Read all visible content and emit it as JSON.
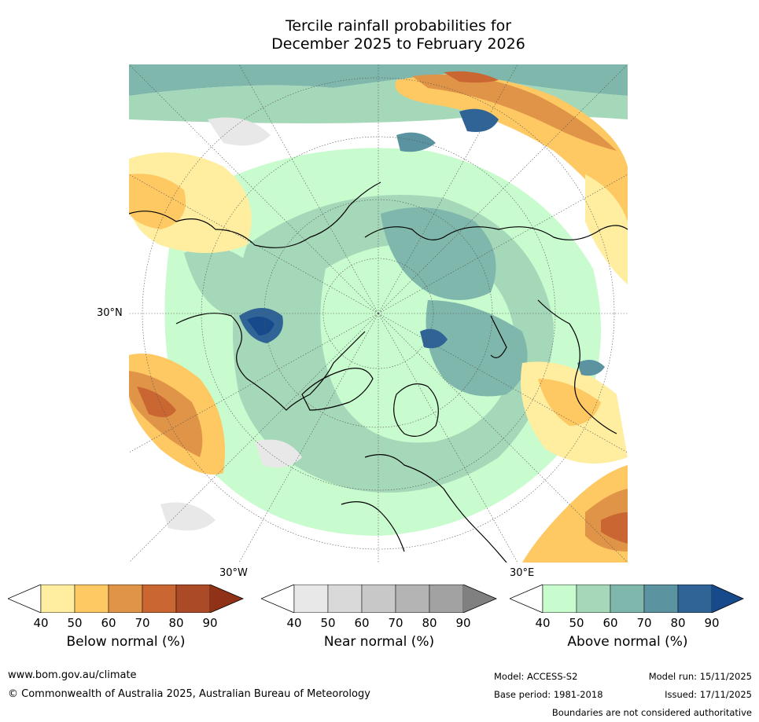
{
  "title": {
    "line1": "Tercile rainfall probabilities for",
    "line2": "December 2025 to February 2026"
  },
  "map": {
    "label_30N": "30°N",
    "label_30W": "30°W",
    "label_30E": "30°E"
  },
  "colorbars": [
    {
      "title": "Below normal (%)",
      "ticks": [
        "40",
        "50",
        "60",
        "70",
        "80",
        "90"
      ],
      "colors": [
        "#ffeda0",
        "#fec863",
        "#e09448",
        "#c96632",
        "#aa4a26"
      ],
      "over": "#8f3218"
    },
    {
      "title": "Near normal (%)",
      "ticks": [
        "40",
        "50",
        "60",
        "70",
        "80",
        "90"
      ],
      "colors": [
        "#e8e8e8",
        "#d9d9d9",
        "#c8c8c8",
        "#b4b4b4",
        "#a2a2a2"
      ],
      "over": "#808080"
    },
    {
      "title": "Above normal (%)",
      "ticks": [
        "40",
        "50",
        "60",
        "70",
        "80",
        "90"
      ],
      "colors": [
        "#c8fbcd",
        "#a5d8b9",
        "#7fb7ac",
        "#5b93a0",
        "#306496"
      ],
      "over": "#174a8a"
    }
  ],
  "footer": {
    "website": "www.bom.gov.au/climate",
    "copyright": "© Commonwealth of Australia 2025, Australian Bureau of Meteorology",
    "model": "Model: ACCESS-S2",
    "base_period": "Base period: 1981-2018",
    "model_run": "Model run: 15/11/2025",
    "issued": "Issued: 17/11/2025",
    "disclaimer": "Boundaries are not considered authoritative"
  }
}
